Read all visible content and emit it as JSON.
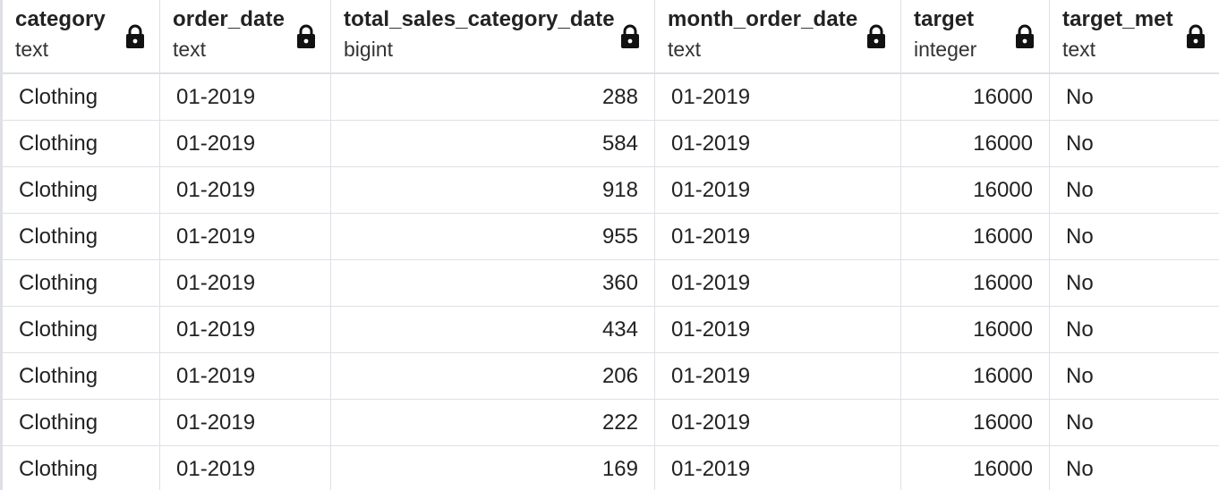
{
  "columns": [
    {
      "name": "category",
      "type": "text",
      "icon": "lock-icon",
      "align": "left"
    },
    {
      "name": "order_date",
      "type": "text",
      "icon": "lock-icon",
      "align": "left"
    },
    {
      "name": "total_sales_category_date",
      "type": "bigint",
      "icon": "lock-icon",
      "align": "right"
    },
    {
      "name": "month_order_date",
      "type": "text",
      "icon": "lock-icon",
      "align": "left"
    },
    {
      "name": "target",
      "type": "integer",
      "icon": "lock-icon",
      "align": "right"
    },
    {
      "name": "target_met",
      "type": "text",
      "icon": "lock-icon",
      "align": "left"
    }
  ],
  "rows": [
    [
      "Clothing",
      "01-2019",
      "288",
      "01-2019",
      "16000",
      "No"
    ],
    [
      "Clothing",
      "01-2019",
      "584",
      "01-2019",
      "16000",
      "No"
    ],
    [
      "Clothing",
      "01-2019",
      "918",
      "01-2019",
      "16000",
      "No"
    ],
    [
      "Clothing",
      "01-2019",
      "955",
      "01-2019",
      "16000",
      "No"
    ],
    [
      "Clothing",
      "01-2019",
      "360",
      "01-2019",
      "16000",
      "No"
    ],
    [
      "Clothing",
      "01-2019",
      "434",
      "01-2019",
      "16000",
      "No"
    ],
    [
      "Clothing",
      "01-2019",
      "206",
      "01-2019",
      "16000",
      "No"
    ],
    [
      "Clothing",
      "01-2019",
      "222",
      "01-2019",
      "16000",
      "No"
    ],
    [
      "Clothing",
      "01-2019",
      "169",
      "01-2019",
      "16000",
      "No"
    ]
  ],
  "colors": {
    "grid_line": "#dde0e6",
    "text": "#222222",
    "background": "#ffffff"
  }
}
